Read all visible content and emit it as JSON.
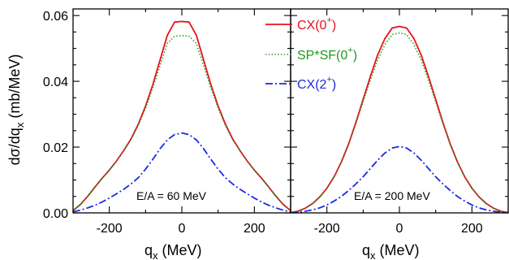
{
  "chart_data": [
    {
      "type": "line",
      "annotation": "E/A = 60 MeV",
      "xlabel": "q",
      "xlabel_sub": "x",
      "xlabel_unit": "(MeV)",
      "ylabel": "dσ/dq",
      "ylabel_sub": "x",
      "ylabel_unit": "(mb/MeV)",
      "xlim": [
        -300,
        300
      ],
      "ylim": [
        0,
        0.062
      ],
      "xticks": [
        -200,
        0,
        200
      ],
      "xtick_labels": [
        "-200",
        "0",
        "200"
      ],
      "yticks": [
        0,
        0.02,
        0.04,
        0.06
      ],
      "ytick_labels": [
        "0.00",
        "0.02",
        "0.04",
        "0.06"
      ],
      "grid": false,
      "legend": "none",
      "series": [
        {
          "key": "cx0",
          "color": "#e8101a",
          "style": "solid",
          "x": [
            -300,
            -280,
            -260,
            -240,
            -220,
            -200,
            -180,
            -160,
            -140,
            -120,
            -100,
            -80,
            -60,
            -40,
            -20,
            0,
            20,
            40,
            60,
            80,
            100,
            120,
            140,
            160,
            180,
            200,
            220,
            240,
            260,
            280,
            300
          ],
          "y": [
            0.0007,
            0.0025,
            0.005,
            0.0078,
            0.0105,
            0.013,
            0.0158,
            0.019,
            0.0225,
            0.027,
            0.0325,
            0.039,
            0.0465,
            0.054,
            0.058,
            0.0582,
            0.058,
            0.054,
            0.0465,
            0.039,
            0.0325,
            0.027,
            0.0225,
            0.019,
            0.0158,
            0.013,
            0.0105,
            0.0078,
            0.005,
            0.0025,
            0.0007
          ]
        },
        {
          "key": "spsf0",
          "color": "#1f9a1f",
          "style": "dotted",
          "x": [
            -300,
            -280,
            -260,
            -240,
            -220,
            -200,
            -180,
            -160,
            -140,
            -120,
            -100,
            -80,
            -60,
            -40,
            -20,
            0,
            20,
            40,
            60,
            80,
            100,
            120,
            140,
            160,
            180,
            200,
            220,
            240,
            260,
            280,
            300
          ],
          "y": [
            0.0007,
            0.0025,
            0.005,
            0.0078,
            0.0105,
            0.013,
            0.0158,
            0.0189,
            0.0223,
            0.0266,
            0.0318,
            0.038,
            0.0448,
            0.0515,
            0.0537,
            0.0539,
            0.0537,
            0.0515,
            0.0448,
            0.038,
            0.0318,
            0.0266,
            0.0223,
            0.0189,
            0.0158,
            0.013,
            0.0105,
            0.0078,
            0.005,
            0.0025,
            0.0007
          ]
        },
        {
          "key": "cx2",
          "color": "#1c2be0",
          "style": "dashdot",
          "x": [
            -300,
            -280,
            -260,
            -240,
            -220,
            -200,
            -180,
            -160,
            -140,
            -120,
            -100,
            -80,
            -60,
            -40,
            -20,
            0,
            20,
            40,
            60,
            80,
            100,
            120,
            140,
            160,
            180,
            200,
            220,
            240,
            260,
            280,
            300
          ],
          "y": [
            0.0003,
            0.0008,
            0.0015,
            0.0023,
            0.0033,
            0.0045,
            0.0058,
            0.0072,
            0.0088,
            0.0107,
            0.0133,
            0.0163,
            0.0195,
            0.0222,
            0.0238,
            0.0243,
            0.0238,
            0.0222,
            0.0195,
            0.0163,
            0.0133,
            0.0107,
            0.0088,
            0.0072,
            0.0058,
            0.0045,
            0.0033,
            0.0023,
            0.0015,
            0.0008,
            0.0003
          ]
        }
      ]
    },
    {
      "type": "line",
      "annotation": "E/A = 200 MeV",
      "xlabel": "q",
      "xlabel_sub": "x",
      "xlabel_unit": "(MeV)",
      "xlim": [
        -300,
        300
      ],
      "ylim": [
        0,
        0.062
      ],
      "xticks": [
        -200,
        0,
        200
      ],
      "xtick_labels": [
        "-200",
        "0",
        "200"
      ],
      "yticks": [
        0,
        0.02,
        0.04,
        0.06
      ],
      "grid": false,
      "legend": "top-left",
      "legend_entries": [
        {
          "key": "cx0",
          "label": "CX(0",
          "sup": "+",
          "tail": ")",
          "color": "#e8101a",
          "style": "solid"
        },
        {
          "key": "spsf0",
          "label": "SP*SF(0",
          "sup": "+",
          "tail": ")",
          "color": "#1f9a1f",
          "style": "dotted"
        },
        {
          "key": "cx2",
          "label": "CX(2",
          "sup": "+",
          "tail": ")",
          "color": "#1c2be0",
          "style": "dashdot"
        }
      ],
      "series": [
        {
          "key": "cx0",
          "color": "#e8101a",
          "style": "solid",
          "x": [
            -300,
            -280,
            -260,
            -240,
            -220,
            -200,
            -180,
            -160,
            -140,
            -120,
            -100,
            -80,
            -60,
            -40,
            -20,
            0,
            20,
            40,
            60,
            80,
            100,
            120,
            140,
            160,
            180,
            200,
            220,
            240,
            260,
            280,
            300
          ],
          "y": [
            0.0001,
            0.0005,
            0.0014,
            0.0028,
            0.0048,
            0.0075,
            0.011,
            0.0155,
            0.021,
            0.0275,
            0.0345,
            0.0415,
            0.048,
            0.053,
            0.0562,
            0.0567,
            0.0562,
            0.053,
            0.048,
            0.0415,
            0.0345,
            0.0275,
            0.021,
            0.0155,
            0.011,
            0.0075,
            0.0048,
            0.0028,
            0.0014,
            0.0005,
            0.0001
          ]
        },
        {
          "key": "spsf0",
          "color": "#1f9a1f",
          "style": "dotted",
          "x": [
            -300,
            -280,
            -260,
            -240,
            -220,
            -200,
            -180,
            -160,
            -140,
            -120,
            -100,
            -80,
            -60,
            -40,
            -20,
            0,
            20,
            40,
            60,
            80,
            100,
            120,
            140,
            160,
            180,
            200,
            220,
            240,
            260,
            280,
            300
          ],
          "y": [
            0.0001,
            0.0005,
            0.0014,
            0.0028,
            0.0048,
            0.0075,
            0.011,
            0.0154,
            0.0208,
            0.0271,
            0.0338,
            0.0404,
            0.0465,
            0.0512,
            0.0542,
            0.0547,
            0.0542,
            0.0512,
            0.0465,
            0.0404,
            0.0338,
            0.0271,
            0.0208,
            0.0154,
            0.011,
            0.0075,
            0.0048,
            0.0028,
            0.0014,
            0.0005,
            0.0001
          ]
        },
        {
          "key": "cx2",
          "color": "#1c2be0",
          "style": "dashdot",
          "x": [
            -300,
            -280,
            -260,
            -240,
            -220,
            -200,
            -180,
            -160,
            -140,
            -120,
            -100,
            -80,
            -60,
            -40,
            -20,
            0,
            20,
            40,
            60,
            80,
            100,
            120,
            140,
            160,
            180,
            200,
            220,
            240,
            260,
            280,
            300
          ],
          "y": [
            0.0001,
            0.0002,
            0.0005,
            0.0009,
            0.0015,
            0.0024,
            0.0036,
            0.005,
            0.0068,
            0.0088,
            0.011,
            0.0135,
            0.016,
            0.0182,
            0.0197,
            0.0202,
            0.0197,
            0.0182,
            0.016,
            0.0135,
            0.011,
            0.0088,
            0.0068,
            0.005,
            0.0036,
            0.0024,
            0.0015,
            0.0009,
            0.0005,
            0.0002,
            0.0001
          ]
        }
      ]
    }
  ]
}
